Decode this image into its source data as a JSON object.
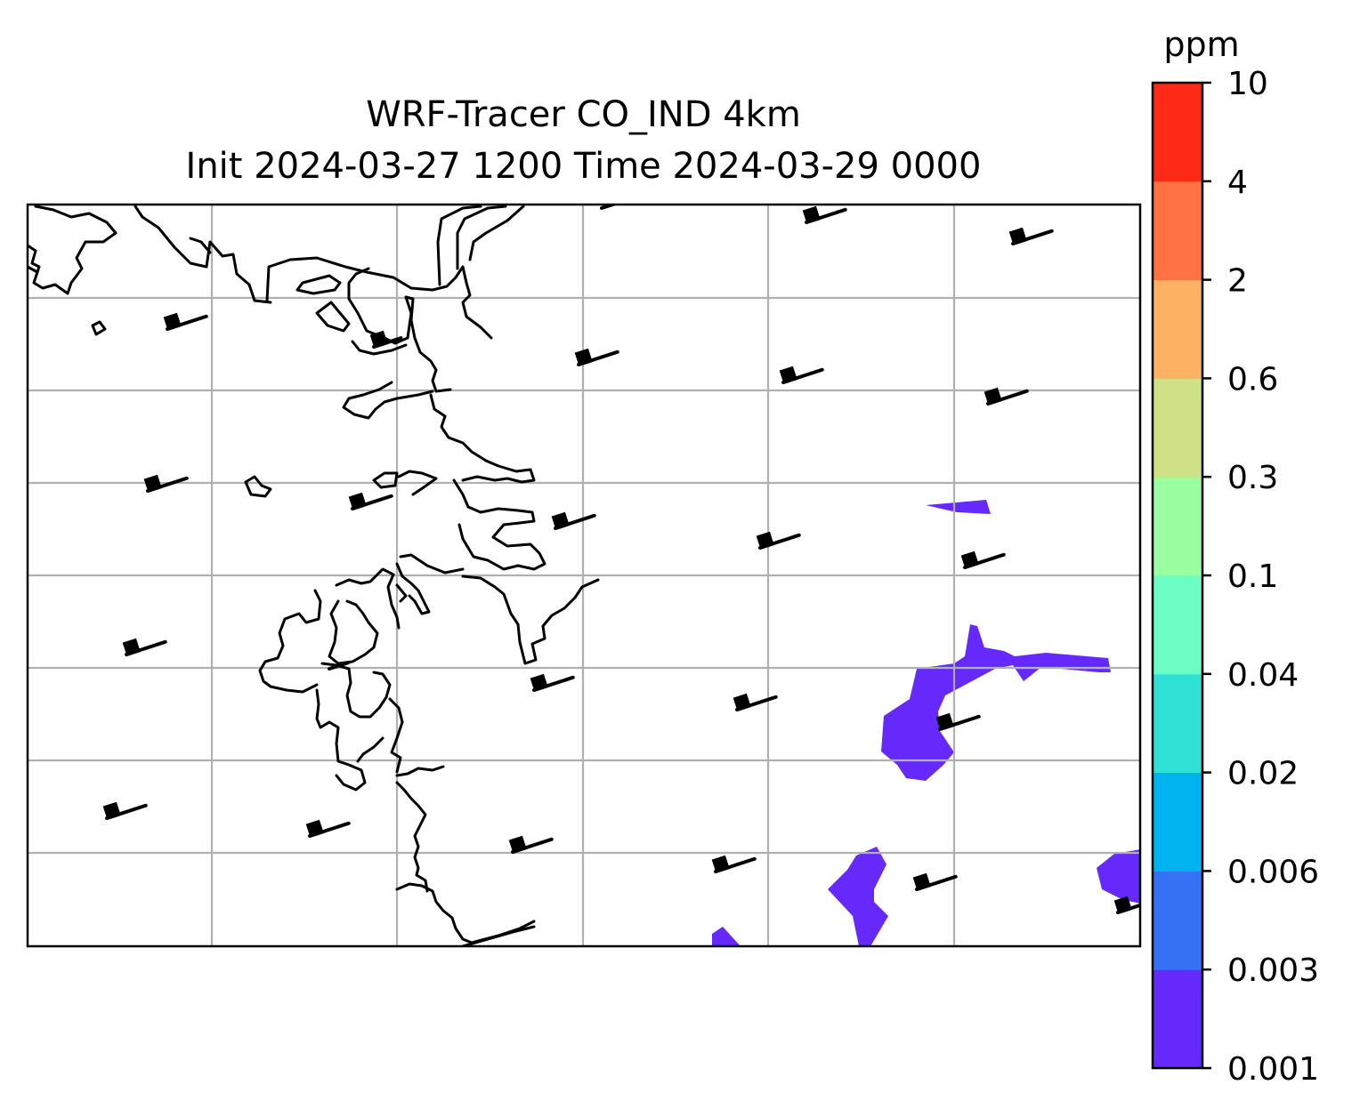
{
  "title": {
    "line1": "WRF-Tracer CO_IND 4km",
    "line2": "Init 2024-03-27 1200 Time 2024-03-29 0000"
  },
  "colorbar": {
    "unit": "ppm",
    "ticks": [
      "0.001",
      "0.003",
      "0.006",
      "0.02",
      "0.04",
      "0.1",
      "0.3",
      "0.6",
      "2",
      "4",
      "10"
    ],
    "colors": [
      "#6629fb",
      "#3472f3",
      "#00b2ee",
      "#2fe0d4",
      "#6bfdc3",
      "#99fea0",
      "#cfe087",
      "#fdb163",
      "#fe7141",
      "#fe2a17"
    ]
  },
  "map": {
    "layers": [
      "coastline",
      "gridlines",
      "tracer-contours",
      "wind-barbs"
    ],
    "gridline_color": "#b0b0b0",
    "coastline_color": "#000000",
    "barb_color": "#000000",
    "filled_level": "0.001 - 0.003"
  }
}
